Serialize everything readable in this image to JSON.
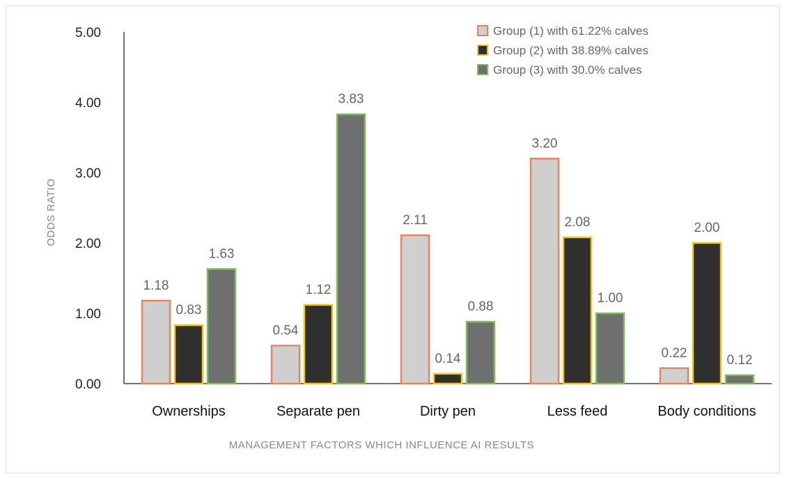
{
  "chart_data": {
    "type": "bar",
    "title": "",
    "xlabel": "MANAGEMENT FACTORS WHICH INFLUENCE AI RESULTS",
    "ylabel": "ODDS RATIO",
    "ylim": [
      0,
      5
    ],
    "yticks": [
      "0.00",
      "1.00",
      "2.00",
      "3.00",
      "4.00",
      "5.00"
    ],
    "grid": false,
    "legend_position": "top-right",
    "categories": [
      "Ownerships",
      "Separate pen",
      "Dirty pen",
      "Less feed",
      "Body conditions"
    ],
    "series": [
      {
        "name": "Group (1) with 61.22% calves",
        "values": [
          1.18,
          0.54,
          2.11,
          3.2,
          0.22
        ],
        "labels": [
          "1.18",
          "0.54",
          "2.11",
          "3.20",
          "0.22"
        ],
        "fill": "#cfcfcf",
        "stroke": "#e8845a"
      },
      {
        "name": "Group (2) with 38.89% calves",
        "values": [
          0.83,
          1.12,
          0.14,
          2.08,
          2.0
        ],
        "labels": [
          "0.83",
          "1.12",
          "0.14",
          "2.08",
          "2.00"
        ],
        "fill": "#2f2f2f",
        "stroke": "#f2c418"
      },
      {
        "name": "Group (3) with 30.0% calves",
        "values": [
          1.63,
          3.83,
          0.88,
          1.0,
          0.12
        ],
        "labels": [
          "1.63",
          "3.83",
          "0.88",
          "1.00",
          "0.12"
        ],
        "fill": "#6f6f6f",
        "stroke": "#7fbf5a"
      }
    ]
  }
}
